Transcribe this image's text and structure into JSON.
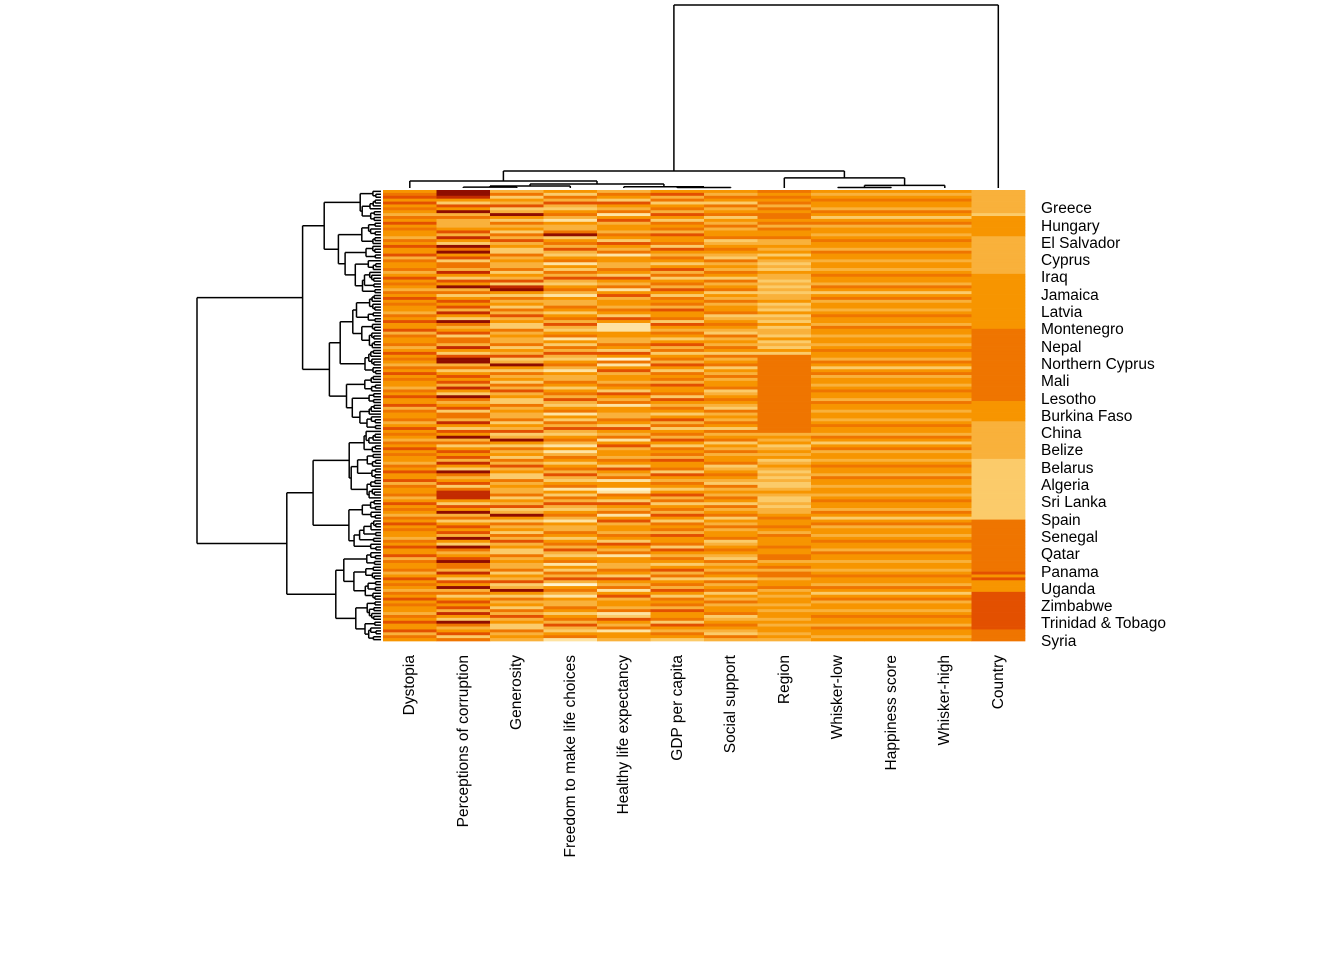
{
  "chart_data": {
    "type": "heatmap",
    "title": "",
    "subtitle": "",
    "legend": "none",
    "description": "Hierarchically clustered heatmap of World Happiness style data with row dendrogram (left) and column dendrogram (top); orange sequential palette from pale yellow (low) to dark red (high).",
    "col_labels": [
      "Dystopia",
      "Perceptions of corruption",
      "Generosity",
      "Freedom to make life choices",
      "Healthy life expectancy",
      "GDP per capita",
      "Social support",
      "Region",
      "Whisker-low",
      "Happiness score",
      "Whisker-high",
      "Country"
    ],
    "row_labels": [
      "Greece",
      "Hungary",
      "El Salvador",
      "Cyprus",
      "Iraq",
      "Jamaica",
      "Latvia",
      "Montenegro",
      "Nepal",
      "Northern Cyprus",
      "Mali",
      "Lesotho",
      "Burkina Faso",
      "China",
      "Belize",
      "Belarus",
      "Algeria",
      "Sri Lanka",
      "Spain",
      "Senegal",
      "Qatar",
      "Panama",
      "Uganda",
      "Zimbabwe",
      "Trinidad & Tobago",
      "Syria"
    ],
    "n_rows": 156,
    "n_cols": 12,
    "row_label_every_n_rows": 6,
    "palette": [
      "#FFF3CE",
      "#FEE3A2",
      "#FBCB6A",
      "#F9B13B",
      "#F79500",
      "#EF7500",
      "#E35000",
      "#C32B00",
      "#8F0D00"
    ],
    "value_encoding": "each cell holds a palette index 0 (lightest) to 8 (darkest), column-major strings below",
    "matrix_by_column": [
      "453464543546454435464463544534645435464544354644635445346454354645443546446354453464543546454435464463544534645435464544354644635445346454354645443546446354",
      "537426483524646374285346255374264835246463742853462553742648352464637428534625537426483524646374285346255374264835246463742853462553742648352464637428534625",
      "352436238425342536342253433524362384253425363422534335243623842534253634225343352436238425342536342253433524362384253425363422534335243623842534253634225343",
      "425363245314335424536324514253632453143354245363245142536324531433542453632451425363245314335424536324514253632453143354245363245142536324531433542453632451",
      "354264351463443542643514433542643514634435426435144335426435146344354264351443354264351463443542643514433542643514634435426435144335426435146344354264351443",
      "463524536425453644526435424635245364254536445264354246352453642545364452643542463524536425453644526435424635245364254536445264354246352453642545364452643542",
      "435425345243534452345432534354253452435344523454325343542534524353445234543253435425345243534452345432534354253452435344523454325343542534524353445234543253",
      "545453545545354453343424323243323232334232423242332423242555555555555555555555555555343423434234323232234322323345445435444544553453553445343443434434344343443434",
      "434544354245344345443544344345443542453443454435443443454435424534434544354434434544354245344345443544344345443542453443454435443443454435424534434544354434",
      "434544354245344345443544344345443542453443454435443443454435424534434544354434434544354245344345443544344345443542453443454435443443454435424534434544354434",
      "434544354245344345443544344345443542453443454435443443454435424534434544354434434544354245344345443544344345443542453443454435443443454435424534434544354434",
      "333333332444444433333333333334444444444444444444555555555555555555555555544444443333333333333222222222222222222222555555555555555555646444466666666666665555"
    ],
    "cell_overrides": [
      [
        2,
        0,
        6
      ],
      [
        0,
        1,
        8
      ],
      [
        1,
        1,
        8
      ],
      [
        10,
        1,
        3
      ],
      [
        11,
        1,
        3
      ],
      [
        12,
        1,
        3
      ],
      [
        21,
        1,
        8
      ],
      [
        58,
        1,
        8
      ],
      [
        104,
        1,
        7
      ],
      [
        105,
        1,
        7
      ],
      [
        120,
        1,
        8
      ],
      [
        128,
        1,
        8
      ],
      [
        33,
        2,
        7
      ],
      [
        15,
        3,
        8
      ],
      [
        90,
        3,
        1
      ],
      [
        136,
        3,
        0
      ],
      [
        46,
        4,
        1
      ],
      [
        47,
        4,
        1
      ],
      [
        58,
        4,
        0
      ],
      [
        103,
        4,
        0
      ],
      [
        104,
        4,
        1
      ],
      [
        146,
        4,
        1
      ]
    ],
    "col_dendrogram": {
      "orientation": "top",
      "tree": {
        "h": 1.0,
        "children": [
          {
            "h": 0.093,
            "children": [
              {
                "h": 0.038,
                "children": [
                  {
                    "leaf": 0
                  },
                  {
                    "h": 0.022,
                    "children": [
                      {
                        "h": 0.011,
                        "children": [
                          {
                            "h": 0.005,
                            "children": [
                              {
                                "leaf": 1
                              },
                              {
                                "leaf": 2
                              }
                            ]
                          },
                          {
                            "leaf": 3
                          }
                        ]
                      },
                      {
                        "h": 0.007,
                        "children": [
                          {
                            "leaf": 4
                          },
                          {
                            "h": 0.003,
                            "children": [
                              {
                                "leaf": 5
                              },
                              {
                                "leaf": 6
                              }
                            ]
                          }
                        ]
                      }
                    ]
                  }
                ]
              },
              {
                "h": 0.055,
                "children": [
                  {
                    "leaf": 7
                  },
                  {
                    "h": 0.014,
                    "children": [
                      {
                        "h": 0.003,
                        "children": [
                          {
                            "leaf": 8
                          },
                          {
                            "leaf": 9
                          }
                        ]
                      },
                      {
                        "leaf": 10
                      }
                    ]
                  }
                ]
              }
            ]
          },
          {
            "leaf": 11
          }
        ]
      }
    },
    "row_dendrogram": {
      "orientation": "left",
      "approximate": true,
      "seed": 13
    }
  }
}
